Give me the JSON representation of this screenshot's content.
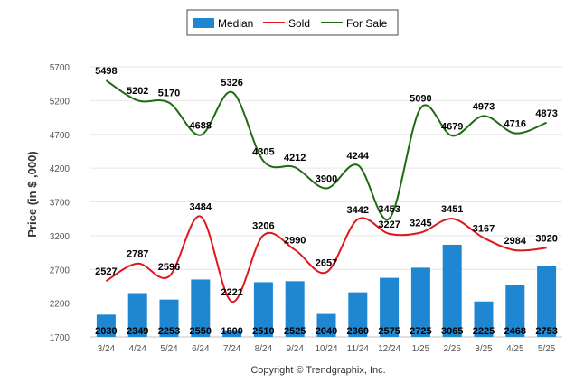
{
  "chart_data": {
    "type": "bar",
    "categories": [
      "3/24",
      "4/24",
      "5/24",
      "6/24",
      "7/24",
      "8/24",
      "9/24",
      "10/24",
      "11/24",
      "12/24",
      "1/25",
      "2/25",
      "3/25",
      "4/25",
      "5/25"
    ],
    "series": [
      {
        "name": "Median",
        "type": "bar",
        "color": "#1f86d1",
        "values": [
          2030,
          2349,
          2253,
          2550,
          1800,
          2510,
          2525,
          2040,
          2360,
          2575,
          2725,
          3065,
          2225,
          2468,
          2753
        ]
      },
      {
        "name": "Sold",
        "type": "line",
        "color": "#e0161d",
        "values": [
          2527,
          2787,
          2596,
          3484,
          2221,
          3206,
          2990,
          2657,
          3442,
          3227,
          3245,
          3451,
          3167,
          2984,
          3020
        ]
      },
      {
        "name": "For Sale",
        "type": "line",
        "color": "#1e6b12",
        "values": [
          5498,
          5202,
          5170,
          4688,
          5326,
          4305,
          4212,
          3900,
          4244,
          3453,
          5090,
          4679,
          4973,
          4716,
          4873
        ]
      }
    ],
    "ylabel": "Price (in $ ,000)",
    "ylim": [
      1700,
      5700
    ],
    "yticks": [
      1700,
      2200,
      2700,
      3200,
      3700,
      4200,
      4700,
      5200,
      5700
    ],
    "grid": true,
    "legend_position": "top-center",
    "copyright": "Copyright © Trendgraphix, Inc."
  }
}
